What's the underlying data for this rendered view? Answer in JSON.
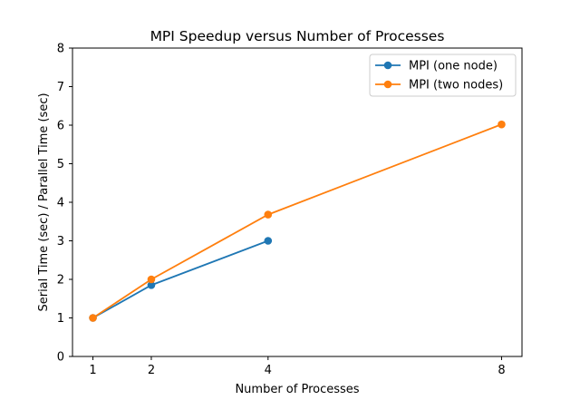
{
  "chart_data": {
    "type": "line",
    "title": "MPI Speedup versus Number of Processes",
    "xlabel": "Number of Processes",
    "ylabel": "Serial Time (sec) / Parallel Time (sec)",
    "xlim": [
      0.65,
      8.35
    ],
    "ylim": [
      0,
      8
    ],
    "xticks": [
      1,
      2,
      4,
      8
    ],
    "yticks": [
      0,
      1,
      2,
      3,
      4,
      5,
      6,
      7,
      8
    ],
    "grid": false,
    "legend_position": "top-right",
    "series": [
      {
        "name": "MPI (one node)",
        "color": "#1f77b4",
        "x": [
          1,
          2,
          4
        ],
        "y": [
          1.0,
          1.85,
          3.0
        ]
      },
      {
        "name": "MPI (two nodes)",
        "color": "#ff7f0e",
        "x": [
          1,
          2,
          4,
          8
        ],
        "y": [
          1.0,
          2.0,
          3.68,
          6.02
        ]
      }
    ]
  }
}
